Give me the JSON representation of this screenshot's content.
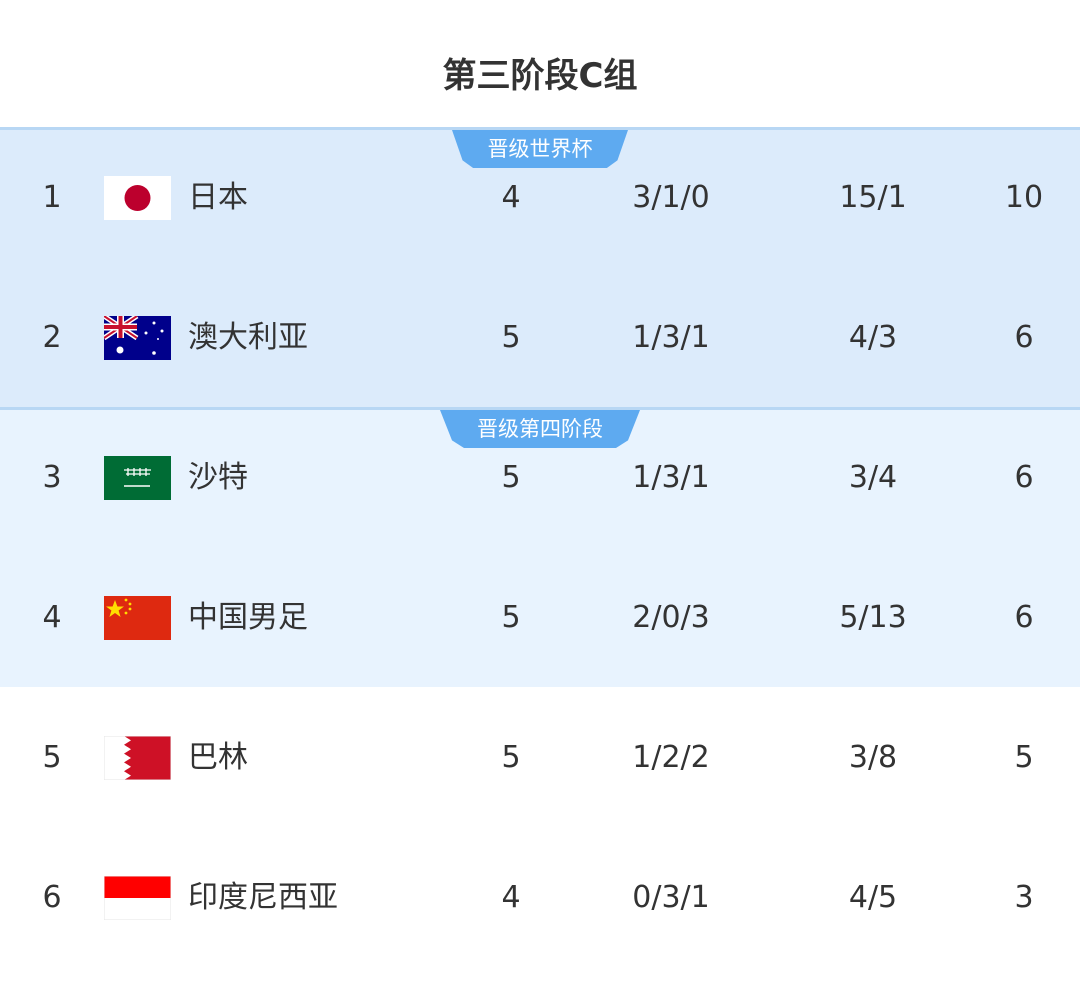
{
  "title": "第三阶段C组",
  "zones": [
    {
      "label": "晋级世界杯",
      "color": "#dcebfb"
    },
    {
      "label": "晋级第四阶段",
      "color": "#e8f3fe"
    }
  ],
  "badge_color": "#5eaaf0",
  "rows": [
    {
      "rank": "1",
      "flag": "japan-flag",
      "team": "日本",
      "played": "4",
      "wdl": "3/1/0",
      "goals": "15/1",
      "points": "10"
    },
    {
      "rank": "2",
      "flag": "australia-flag",
      "team": "澳大利亚",
      "played": "5",
      "wdl": "1/3/1",
      "goals": "4/3",
      "points": "6"
    },
    {
      "rank": "3",
      "flag": "saudi-arabia-flag",
      "team": "沙特",
      "played": "5",
      "wdl": "1/3/1",
      "goals": "3/4",
      "points": "6"
    },
    {
      "rank": "4",
      "flag": "china-flag",
      "team": "中国男足",
      "played": "5",
      "wdl": "2/0/3",
      "goals": "5/13",
      "points": "6"
    },
    {
      "rank": "5",
      "flag": "bahrain-flag",
      "team": "巴林",
      "played": "5",
      "wdl": "1/2/2",
      "goals": "3/8",
      "points": "5"
    },
    {
      "rank": "6",
      "flag": "indonesia-flag",
      "team": "印度尼西亚",
      "played": "4",
      "wdl": "0/3/1",
      "goals": "4/5",
      "points": "3"
    }
  ]
}
